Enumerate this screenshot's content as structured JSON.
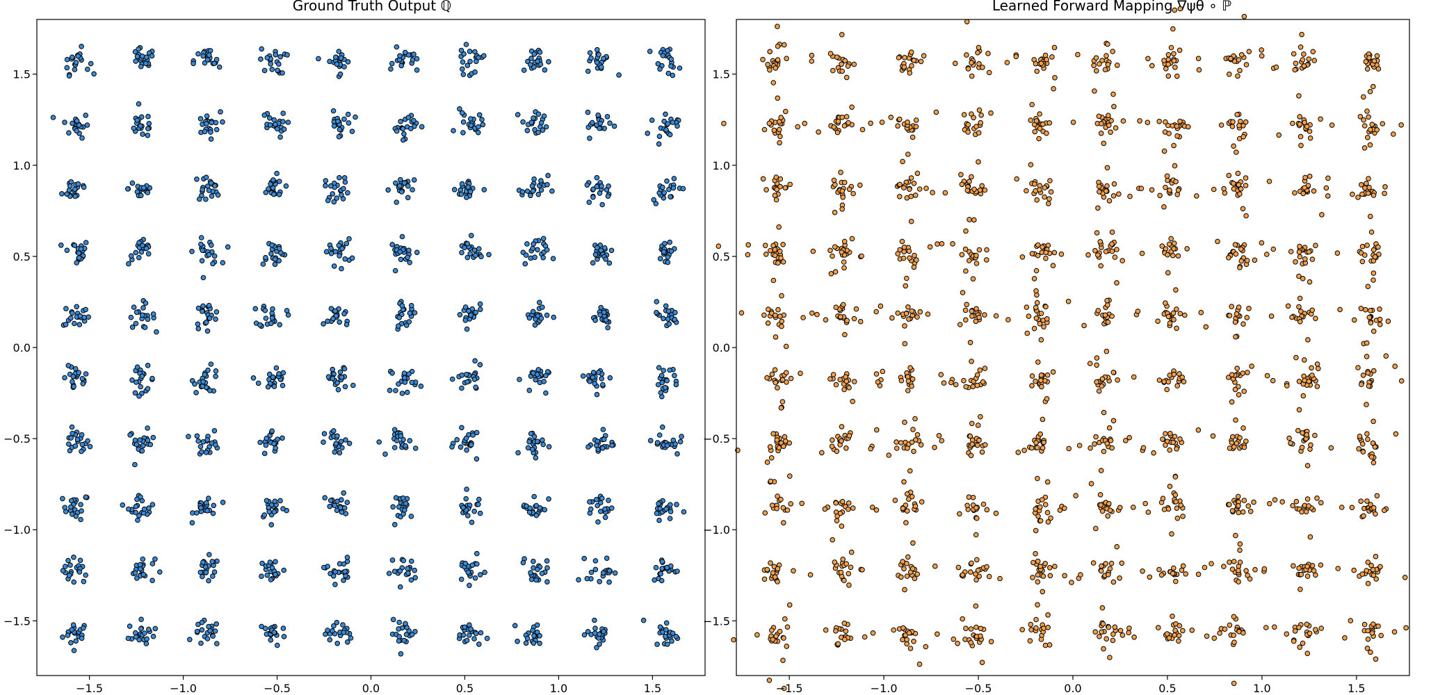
{
  "chart_data": [
    {
      "type": "scatter",
      "title": "Ground Truth Output ℚ",
      "xlabel": "",
      "ylabel": "",
      "xlim": [
        -1.78,
        1.78
      ],
      "ylim": [
        -1.8,
        1.8
      ],
      "xticks": [
        -1.5,
        -1.0,
        -0.5,
        0.0,
        0.5,
        1.0,
        1.5
      ],
      "yticks": [
        -1.5,
        -1.0,
        -0.5,
        0.0,
        0.5,
        1.0,
        1.5
      ],
      "xtick_labels": [
        "−1.5",
        "−1.0",
        "−0.5",
        "0.0",
        "0.5",
        "1.0",
        "1.5"
      ],
      "ytick_labels": [
        "−1.5",
        "−1.0",
        "−0.5",
        "0.0",
        "0.5",
        "1.0",
        "1.5"
      ],
      "grid": false,
      "marker_color": "#3a8ad6",
      "marker_edge": "#000000",
      "cluster_centers_x": [
        -1.571,
        -1.222,
        -0.873,
        -0.524,
        -0.175,
        0.175,
        0.524,
        0.873,
        1.222,
        1.571
      ],
      "cluster_centers_y": [
        -1.571,
        -1.222,
        -0.873,
        -0.524,
        -0.175,
        0.175,
        0.524,
        0.873,
        1.222,
        1.571
      ],
      "points_per_cluster": 20,
      "cluster_spread": 0.035
    },
    {
      "type": "scatter",
      "title": "Learned Forward Mapping ∇ψθ ∘ ℙ",
      "xlabel": "",
      "ylabel": "",
      "xlim": [
        -1.78,
        1.78
      ],
      "ylim": [
        -1.8,
        1.8
      ],
      "xticks": [
        -1.5,
        -1.0,
        -0.5,
        0.0,
        0.5,
        1.0,
        1.5
      ],
      "yticks": [
        -1.5,
        -1.0,
        -0.5,
        0.0,
        0.5,
        1.0,
        1.5
      ],
      "xtick_labels": [
        "−1.5",
        "−1.0",
        "−0.5",
        "0.0",
        "0.5",
        "1.0",
        "1.5"
      ],
      "ytick_labels": [
        "−1.5",
        "−1.0",
        "−0.5",
        "0.0",
        "0.5",
        "1.0",
        "1.5"
      ],
      "grid": false,
      "marker_color": "#f5a04b",
      "marker_edge": "#000000",
      "cluster_centers_x": [
        -1.571,
        -1.222,
        -0.873,
        -0.524,
        -0.175,
        0.175,
        0.524,
        0.873,
        1.222,
        1.571
      ],
      "cluster_centers_y": [
        -1.571,
        -1.222,
        -0.873,
        -0.524,
        -0.175,
        0.175,
        0.524,
        0.873,
        1.222,
        1.571
      ],
      "points_per_cluster": 20,
      "cluster_spread": 0.03,
      "streak_spread": 0.17
    }
  ]
}
